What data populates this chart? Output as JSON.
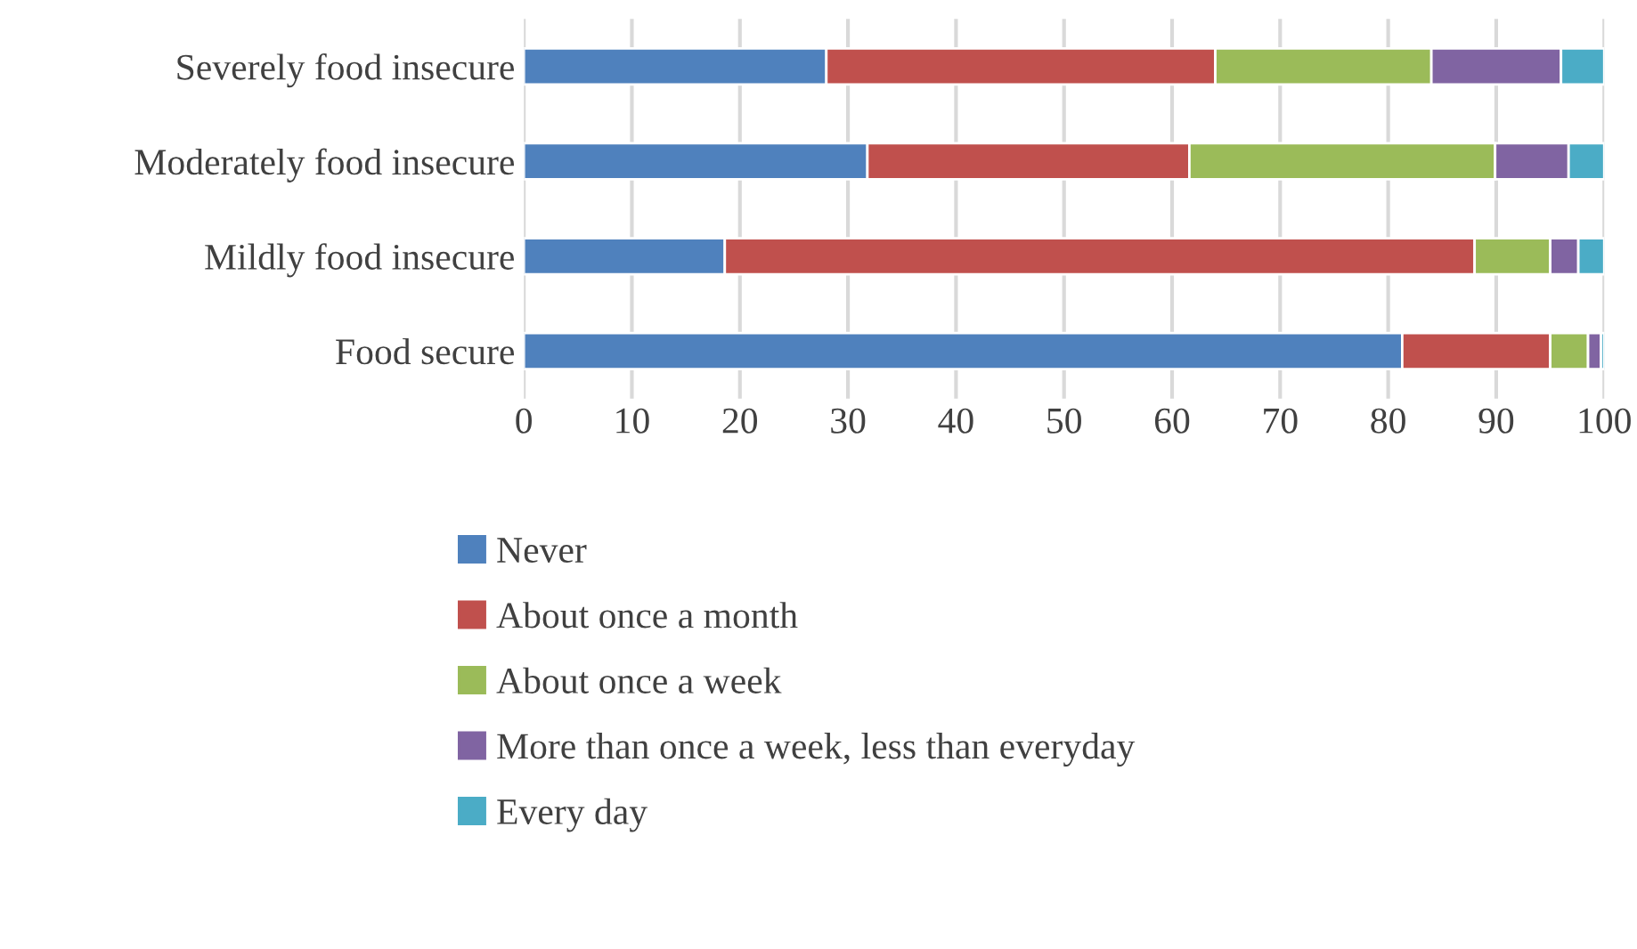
{
  "chart_data": {
    "type": "bar",
    "orientation": "horizontal",
    "stacked": true,
    "categories": [
      "Severely food insecure",
      "Moderately food insecure",
      "Mildly food insecure",
      "Food secure"
    ],
    "series": [
      {
        "name": "Never",
        "color": "#4f81bd",
        "values": [
          28,
          31.8,
          18.6,
          81.3
        ]
      },
      {
        "name": "About once a month",
        "color": "#c0504d",
        "values": [
          36,
          29.8,
          69.4,
          13.7
        ]
      },
      {
        "name": "About once a week",
        "color": "#9bbb59",
        "values": [
          20,
          28.3,
          7.0,
          3.5
        ]
      },
      {
        "name": "More than once a week, less than everyday",
        "color": "#8064a2",
        "values": [
          12,
          6.8,
          2.6,
          1.2
        ]
      },
      {
        "name": "Every day",
        "color": "#4bacc6",
        "values": [
          4,
          3.3,
          2.4,
          0.3
        ]
      }
    ],
    "xlim": [
      0,
      100
    ],
    "xticks": [
      0,
      10,
      20,
      30,
      40,
      50,
      60,
      70,
      80,
      90,
      100
    ],
    "grid": "x",
    "legend": "bottom"
  }
}
